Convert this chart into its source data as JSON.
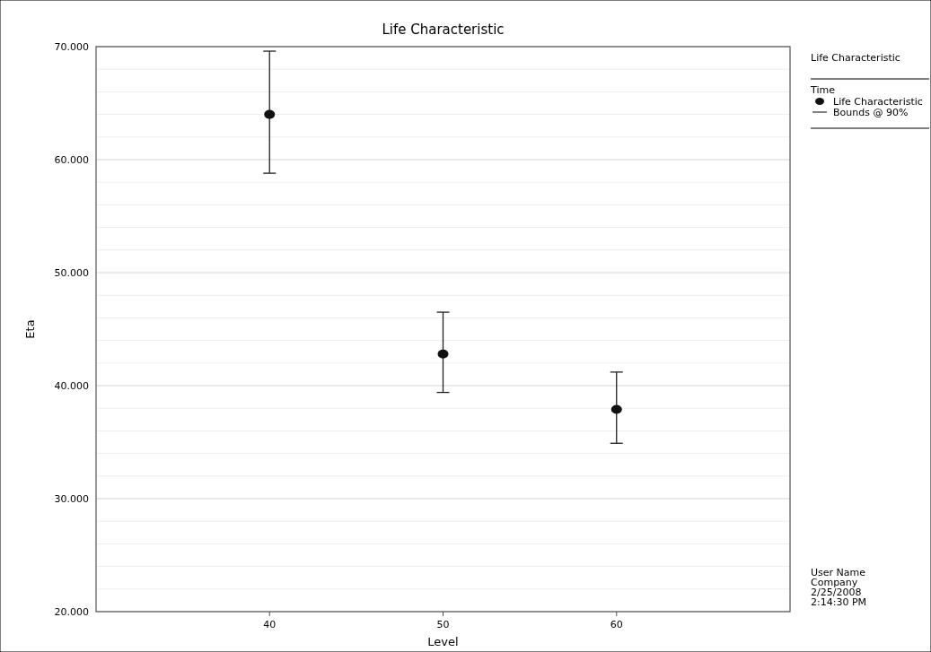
{
  "chart_data": {
    "type": "scatter",
    "title": "Life Characteristic",
    "xlabel": "Level",
    "ylabel": "Eta",
    "legend_title": "Time",
    "legend": "right",
    "x": [
      40,
      50,
      60
    ],
    "series": [
      {
        "name": "Life Characteristic",
        "color": "#111111",
        "values": [
          64.0,
          42.8,
          37.9
        ],
        "errors": [
          [
            58.8,
            69.6
          ],
          [
            39.4,
            46.5
          ],
          [
            34.9,
            41.2
          ]
        ]
      }
    ],
    "xlim": [
      30,
      70
    ],
    "xticks": [
      40,
      50,
      60
    ],
    "ylim": [
      20,
      70
    ],
    "yticks": [
      {
        "value": 20,
        "label": "20.000"
      },
      {
        "value": 22,
        "label": null
      },
      {
        "value": 24,
        "label": null
      },
      {
        "value": 26,
        "label": null
      },
      {
        "value": 28,
        "label": null
      },
      {
        "value": 30,
        "label": "30.000"
      },
      {
        "value": 32,
        "label": null
      },
      {
        "value": 34,
        "label": null
      },
      {
        "value": 36,
        "label": null
      },
      {
        "value": 38,
        "label": null
      },
      {
        "value": 40,
        "label": "40.000"
      },
      {
        "value": 42,
        "label": null
      },
      {
        "value": 44,
        "label": null
      },
      {
        "value": 46,
        "label": null
      },
      {
        "value": 48,
        "label": null
      },
      {
        "value": 50,
        "label": "50.000"
      },
      {
        "value": 52,
        "label": null
      },
      {
        "value": 54,
        "label": null
      },
      {
        "value": 56,
        "label": null
      },
      {
        "value": 58,
        "label": null
      },
      {
        "value": 60,
        "label": "60.000"
      },
      {
        "value": 62,
        "label": null
      },
      {
        "value": 64,
        "label": null
      },
      {
        "value": 66,
        "label": null
      },
      {
        "value": 68,
        "label": null
      },
      {
        "value": 70,
        "label": "70.000"
      }
    ],
    "grid": "y",
    "marker": "circle",
    "annotations": [
      "Life Characteristic",
      "Bounds @ 90%",
      "User Name",
      "Company",
      "2/25/2008",
      "2:14:30 PM"
    ]
  }
}
